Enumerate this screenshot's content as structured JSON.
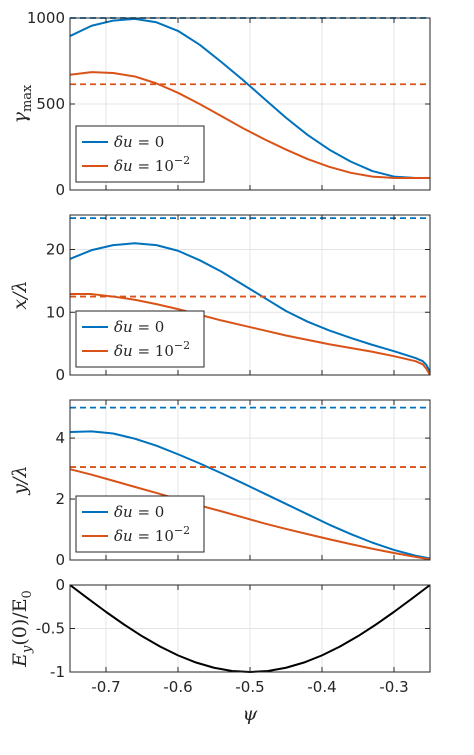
{
  "colors": {
    "blue": "#0072BD",
    "orange": "#D95319",
    "black": "#000000"
  },
  "chart_data": [
    {
      "type": "line",
      "ylabel": "γ_max",
      "ylabel_main": "γ",
      "ylabel_sub": "max",
      "xlabel": "",
      "xlim": [
        -0.75,
        -0.25
      ],
      "ylim": [
        0,
        1000
      ],
      "yticks": [
        0,
        500,
        1000
      ],
      "yticklabels": [
        "0",
        "500",
        "1000"
      ],
      "xticks": [
        -0.7,
        -0.6,
        -0.5,
        -0.4,
        -0.3
      ],
      "xticklabels": [],
      "grid": true,
      "legend_position": "bottom-left",
      "series": [
        {
          "name": "δu = 0",
          "legend_var": "δu",
          "legend_rhs": "= 0",
          "color": "#0072BD",
          "style": "solid",
          "x": [
            -0.75,
            -0.72,
            -0.69,
            -0.66,
            -0.63,
            -0.6,
            -0.57,
            -0.54,
            -0.51,
            -0.48,
            -0.45,
            -0.42,
            -0.39,
            -0.36,
            -0.33,
            -0.3,
            -0.27,
            -0.25
          ],
          "y": [
            895,
            955,
            985,
            995,
            975,
            925,
            845,
            745,
            640,
            530,
            420,
            320,
            235,
            165,
            110,
            78,
            70,
            70
          ]
        },
        {
          "name": "δu = 10^-2",
          "legend_var": "δu",
          "legend_rhs": "= 10",
          "legend_exp": "−2",
          "color": "#D95319",
          "style": "solid",
          "x": [
            -0.75,
            -0.72,
            -0.69,
            -0.66,
            -0.63,
            -0.6,
            -0.57,
            -0.54,
            -0.51,
            -0.48,
            -0.45,
            -0.42,
            -0.39,
            -0.36,
            -0.33,
            -0.3,
            -0.27,
            -0.25
          ],
          "y": [
            670,
            685,
            680,
            660,
            620,
            565,
            500,
            430,
            360,
            295,
            235,
            180,
            135,
            100,
            78,
            70,
            70,
            70
          ]
        },
        {
          "color": "#0072BD",
          "style": "dashed",
          "x": [
            -0.75,
            -0.25
          ],
          "y": [
            1000,
            1000
          ]
        },
        {
          "color": "#D95319",
          "style": "dashed",
          "x": [
            -0.75,
            -0.25
          ],
          "y": [
            615,
            615
          ]
        }
      ]
    },
    {
      "type": "line",
      "ylabel": "x/λ",
      "xlabel": "",
      "xlim": [
        -0.75,
        -0.25
      ],
      "ylim": [
        0,
        25.5
      ],
      "yticks": [
        0,
        10,
        20
      ],
      "yticklabels": [
        "0",
        "10",
        "20"
      ],
      "xticks": [
        -0.7,
        -0.6,
        -0.5,
        -0.4,
        -0.3
      ],
      "xticklabels": [],
      "grid": true,
      "legend_position": "bottom-left",
      "series": [
        {
          "name": "δu = 0",
          "legend_var": "δu",
          "legend_rhs": "= 0",
          "color": "#0072BD",
          "style": "solid",
          "x": [
            -0.75,
            -0.72,
            -0.69,
            -0.66,
            -0.63,
            -0.6,
            -0.57,
            -0.54,
            -0.51,
            -0.48,
            -0.45,
            -0.42,
            -0.39,
            -0.36,
            -0.33,
            -0.3,
            -0.27,
            -0.26,
            -0.255,
            -0.25
          ],
          "y": [
            18.5,
            19.9,
            20.7,
            21.0,
            20.7,
            19.8,
            18.3,
            16.5,
            14.4,
            12.3,
            10.2,
            8.5,
            7.1,
            5.9,
            4.8,
            3.8,
            2.7,
            2.2,
            1.6,
            0.5
          ]
        },
        {
          "name": "δu = 10^-2",
          "legend_var": "δu",
          "legend_rhs": "= 10",
          "legend_exp": "−2",
          "color": "#D95319",
          "style": "solid",
          "x": [
            -0.75,
            -0.72,
            -0.69,
            -0.66,
            -0.63,
            -0.6,
            -0.57,
            -0.54,
            -0.51,
            -0.48,
            -0.45,
            -0.42,
            -0.39,
            -0.36,
            -0.33,
            -0.3,
            -0.27,
            -0.26,
            -0.255,
            -0.25
          ],
          "y": [
            12.9,
            12.9,
            12.5,
            12.0,
            11.3,
            10.5,
            9.6,
            8.7,
            7.9,
            7.1,
            6.3,
            5.6,
            4.9,
            4.3,
            3.7,
            3.0,
            2.2,
            1.7,
            1.0,
            0.0
          ]
        },
        {
          "color": "#0072BD",
          "style": "dashed",
          "x": [
            -0.75,
            -0.25
          ],
          "y": [
            25,
            25
          ]
        },
        {
          "color": "#D95319",
          "style": "dashed",
          "x": [
            -0.75,
            -0.25
          ],
          "y": [
            12.5,
            12.5
          ]
        }
      ]
    },
    {
      "type": "line",
      "ylabel": "y/λ",
      "xlabel": "",
      "xlim": [
        -0.75,
        -0.25
      ],
      "ylim": [
        0,
        5.25
      ],
      "yticks": [
        0,
        2,
        4
      ],
      "yticklabels": [
        "0",
        "2",
        "4"
      ],
      "xticks": [
        -0.7,
        -0.6,
        -0.5,
        -0.4,
        -0.3
      ],
      "xticklabels": [],
      "grid": true,
      "legend_position": "bottom-left",
      "series": [
        {
          "name": "δu = 0",
          "legend_var": "δu",
          "legend_rhs": "= 0",
          "color": "#0072BD",
          "style": "solid",
          "x": [
            -0.75,
            -0.72,
            -0.69,
            -0.66,
            -0.63,
            -0.6,
            -0.57,
            -0.54,
            -0.51,
            -0.48,
            -0.45,
            -0.42,
            -0.39,
            -0.36,
            -0.33,
            -0.3,
            -0.27,
            -0.25
          ],
          "y": [
            4.2,
            4.22,
            4.15,
            3.98,
            3.75,
            3.47,
            3.17,
            2.85,
            2.52,
            2.18,
            1.84,
            1.5,
            1.16,
            0.85,
            0.57,
            0.33,
            0.14,
            0.05
          ]
        },
        {
          "name": "δu = 10^-2",
          "legend_var": "δu",
          "legend_rhs": "= 10",
          "legend_exp": "−2",
          "color": "#D95319",
          "style": "solid",
          "x": [
            -0.75,
            -0.72,
            -0.69,
            -0.66,
            -0.63,
            -0.6,
            -0.57,
            -0.54,
            -0.51,
            -0.48,
            -0.45,
            -0.42,
            -0.39,
            -0.36,
            -0.33,
            -0.3,
            -0.27,
            -0.25
          ],
          "y": [
            2.98,
            2.8,
            2.6,
            2.4,
            2.2,
            2.0,
            1.79,
            1.6,
            1.4,
            1.2,
            1.02,
            0.85,
            0.68,
            0.52,
            0.37,
            0.23,
            0.1,
            0.02
          ]
        },
        {
          "color": "#0072BD",
          "style": "dashed",
          "x": [
            -0.75,
            -0.25
          ],
          "y": [
            5.0,
            5.0
          ]
        },
        {
          "color": "#D95319",
          "style": "dashed",
          "x": [
            -0.75,
            -0.25
          ],
          "y": [
            3.05,
            3.05
          ]
        }
      ]
    },
    {
      "type": "line",
      "ylabel": "E_y(0)/E_0",
      "xlabel": "ψ",
      "xlim": [
        -0.75,
        -0.25
      ],
      "ylim": [
        -1,
        0
      ],
      "yticks": [
        -1,
        -0.5,
        0
      ],
      "yticklabels": [
        "-1",
        "-0.5",
        "0"
      ],
      "xticks": [
        -0.7,
        -0.6,
        -0.5,
        -0.4,
        -0.3
      ],
      "xticklabels": [
        "-0.7",
        "-0.6",
        "-0.5",
        "-0.4",
        "-0.3"
      ],
      "grid": true,
      "legend_position": "none",
      "series": [
        {
          "color": "#000000",
          "style": "solid",
          "x": [
            -0.75,
            -0.725,
            -0.7,
            -0.675,
            -0.65,
            -0.625,
            -0.6,
            -0.575,
            -0.55,
            -0.525,
            -0.5,
            -0.475,
            -0.45,
            -0.425,
            -0.4,
            -0.375,
            -0.35,
            -0.325,
            -0.3,
            -0.275,
            -0.25
          ],
          "y": [
            0,
            -0.156,
            -0.309,
            -0.454,
            -0.588,
            -0.707,
            -0.809,
            -0.891,
            -0.951,
            -0.988,
            -1.0,
            -0.988,
            -0.951,
            -0.891,
            -0.809,
            -0.707,
            -0.588,
            -0.454,
            -0.309,
            -0.156,
            0
          ]
        }
      ]
    }
  ]
}
